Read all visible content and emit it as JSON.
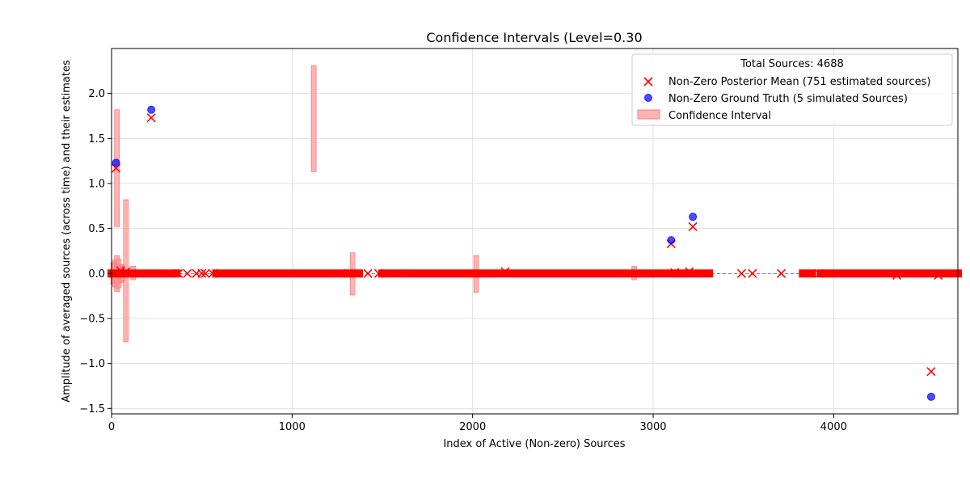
{
  "chart_data": {
    "type": "scatter",
    "title": "Confidence Intervals (Level=0.30",
    "xlabel": "Index of Active (Non-zero) Sources",
    "ylabel": "Amplitude of averaged sources (across time) and their estimates",
    "xlim": [
      0,
      4688
    ],
    "ylim": [
      -1.56,
      2.5
    ],
    "x_ticks": [
      0,
      1000,
      2000,
      3000,
      4000
    ],
    "x_tick_labels": [
      "0",
      "1000",
      "2000",
      "3000",
      "4000"
    ],
    "y_ticks": [
      -1.5,
      -1.0,
      -0.5,
      0.0,
      0.5,
      1.0,
      1.5,
      2.0
    ],
    "y_tick_labels": [
      "−1.5",
      "−1.0",
      "−0.5",
      "0.0",
      "0.5",
      "1.0",
      "1.5",
      "2.0"
    ],
    "grid": true,
    "zero_line": true,
    "legend": {
      "title": "Total Sources: 4688",
      "position": "top-right",
      "entries": [
        "Non-Zero Posterior Mean (751 estimated sources)",
        "Non-Zero Ground Truth (5 simulated Sources)",
        "Confidence Interval"
      ]
    },
    "colors": {
      "posterior": "#ff0000",
      "truth": "#0000ff",
      "interval": "#ff9999",
      "zero_line": "#808080",
      "grid": "#d9d9d9"
    },
    "series": [
      {
        "name": "Non-Zero Posterior Mean (751 estimated sources)",
        "marker": "x",
        "points": [
          [
            25,
            1.17
          ],
          [
            220,
            1.73
          ],
          [
            3100,
            0.33
          ],
          [
            3220,
            0.52
          ],
          [
            4540,
            -1.09
          ],
          [
            2180,
            0.02
          ],
          [
            3200,
            0.02
          ],
          [
            4350,
            -0.02
          ],
          [
            4580,
            -0.02
          ],
          [
            3120,
            0.01
          ],
          [
            50,
            0.03
          ],
          [
            80,
            0.02
          ]
        ],
        "zero_ranges": [
          [
            0,
            360
          ],
          [
            580,
            1290
          ],
          [
            1330,
            1370
          ],
          [
            1500,
            1610
          ],
          [
            1650,
            3310
          ],
          [
            3830,
            3880
          ],
          [
            3930,
            3960
          ],
          [
            4000,
            4688
          ]
        ],
        "zero_points": [
          370,
          420,
          470,
          500,
          520,
          560,
          1310,
          1420,
          1480,
          3490,
          3550,
          3710,
          3920
        ]
      },
      {
        "name": "Non-Zero Ground Truth (5 simulated Sources)",
        "marker": "o",
        "points": [
          [
            25,
            1.23
          ],
          [
            220,
            1.82
          ],
          [
            3100,
            0.37
          ],
          [
            3220,
            0.63
          ],
          [
            4540,
            -1.37
          ]
        ]
      }
    ],
    "intervals": [
      [
        30,
        0.52,
        1.82
      ],
      [
        1120,
        1.13,
        2.31
      ],
      [
        80,
        -0.76,
        0.82
      ],
      [
        10,
        -0.12,
        0.12
      ],
      [
        20,
        -0.15,
        0.15
      ],
      [
        30,
        -0.2,
        0.2
      ],
      [
        40,
        -0.16,
        0.16
      ],
      [
        50,
        -0.1,
        0.1
      ],
      [
        60,
        -0.08,
        0.08
      ],
      [
        120,
        -0.07,
        0.08
      ],
      [
        1335,
        -0.24,
        0.23
      ],
      [
        2020,
        -0.21,
        0.2
      ],
      [
        2895,
        -0.07,
        0.08
      ]
    ]
  }
}
